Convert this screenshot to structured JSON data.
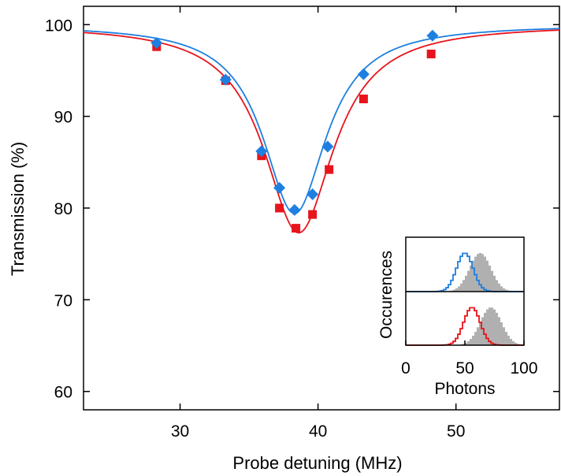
{
  "chart_data": [
    {
      "type": "scatter",
      "title": "",
      "xlabel": "Probe detuning (MHz)",
      "ylabel": "Transmission (%)",
      "xlim": [
        23,
        57.5
      ],
      "ylim": [
        58,
        102
      ],
      "xticks": [
        30,
        40,
        50
      ],
      "yticks": [
        60,
        70,
        80,
        90,
        100
      ],
      "grid": false,
      "legend": "none",
      "series": [
        {
          "marker": "diamond",
          "color": "#1e7fe0",
          "x": [
            28.3,
            33.3,
            35.9,
            37.2,
            38.3,
            39.6,
            40.7,
            43.3,
            48.3
          ],
          "y": [
            98.0,
            94.0,
            86.2,
            82.2,
            79.8,
            81.5,
            86.7,
            94.6,
            98.8
          ],
          "fit": {
            "type": "lorentzian",
            "baseline": 100,
            "depth": 20.6,
            "center": 38.3,
            "hwhm": 2.8
          }
        },
        {
          "marker": "square",
          "color": "#e8141b",
          "x": [
            28.3,
            33.3,
            35.9,
            37.2,
            38.4,
            39.6,
            40.8,
            43.3,
            48.2
          ],
          "y": [
            97.6,
            93.9,
            85.7,
            80.0,
            77.8,
            79.3,
            84.2,
            91.9,
            96.8
          ],
          "fit": {
            "type": "lorentzian",
            "baseline": 100,
            "depth": 22.7,
            "center": 38.6,
            "hwhm": 3.1
          }
        }
      ]
    },
    {
      "type": "histogram",
      "title": "",
      "xlabel": "Photons",
      "ylabel": "Occurences",
      "xlim": [
        0,
        100
      ],
      "xticks": [
        0,
        50,
        100
      ],
      "panels": [
        {
          "outline_color": "#1e7fe0",
          "background_color": "#b0b0b0",
          "outline_mean": 50,
          "outline_std": 7,
          "background_mean": 63,
          "background_std": 9
        },
        {
          "outline_color": "#e8141b",
          "background_color": "#b0b0b0",
          "outline_mean": 56,
          "outline_std": 7,
          "background_mean": 72,
          "background_std": 9
        }
      ]
    }
  ]
}
